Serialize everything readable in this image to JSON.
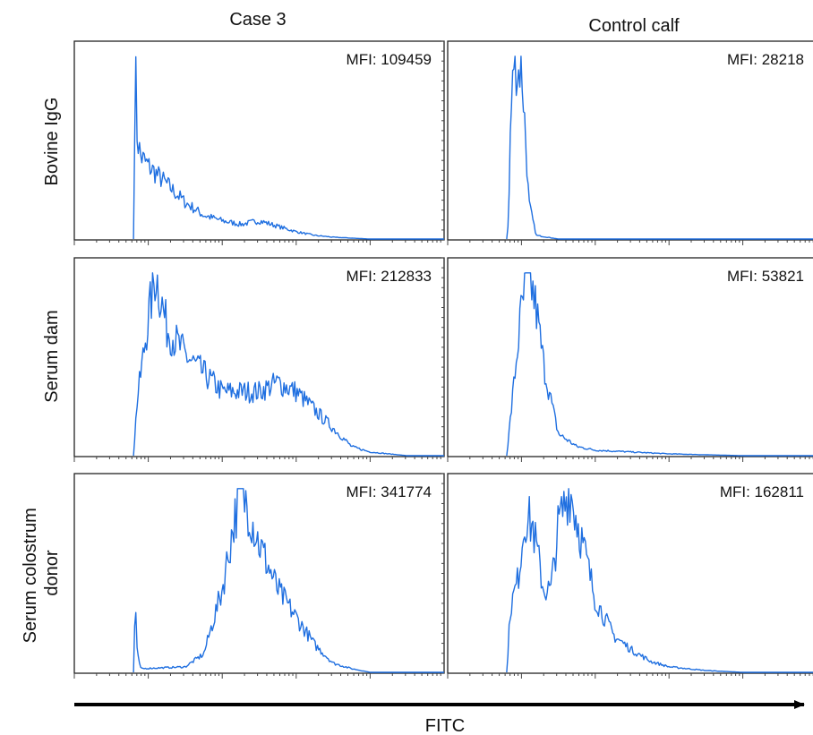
{
  "chart_data": {
    "type": "line",
    "subtype": "flow-cytometry-histogram-grid",
    "columns": [
      "Case 3",
      "Control calf"
    ],
    "rows": [
      {
        "label_lines": [
          "Bovine IgG"
        ]
      },
      {
        "label_lines": [
          "Serum dam"
        ]
      },
      {
        "label_lines": [
          "Serum colostrum",
          "donor"
        ]
      }
    ],
    "xlabel": "FITC",
    "x_scale": "log",
    "x_tick_labels": "none",
    "grid": false,
    "panels": [
      {
        "row": 0,
        "col": 0,
        "mfi": "MFI: 109459",
        "series": "bovine-igg-case3",
        "x": [
          0.16,
          0.165,
          0.17,
          0.18,
          0.2,
          0.25,
          0.3,
          0.35,
          0.4,
          0.45,
          0.5,
          0.55,
          0.6,
          0.65,
          0.7,
          0.75,
          0.8,
          0.9,
          1.0
        ],
        "y": [
          0,
          1.0,
          0.55,
          0.45,
          0.4,
          0.3,
          0.2,
          0.13,
          0.1,
          0.08,
          0.1,
          0.07,
          0.04,
          0.02,
          0.01,
          0.005,
          0,
          0,
          0
        ]
      },
      {
        "row": 0,
        "col": 1,
        "mfi": "MFI: 28218",
        "series": "bovine-igg-control",
        "x": [
          0.16,
          0.165,
          0.17,
          0.18,
          0.19,
          0.2,
          0.21,
          0.22,
          0.24,
          0.3,
          0.5,
          1.0
        ],
        "y": [
          0,
          0.1,
          0.6,
          1.0,
          0.9,
          0.95,
          0.6,
          0.2,
          0.02,
          0,
          0,
          0
        ]
      },
      {
        "row": 1,
        "col": 0,
        "mfi": "MFI: 212833",
        "series": "serum-dam-case3",
        "x": [
          0.16,
          0.17,
          0.2,
          0.22,
          0.25,
          0.3,
          0.35,
          0.4,
          0.45,
          0.5,
          0.55,
          0.6,
          0.65,
          0.7,
          0.75,
          0.8,
          0.9,
          1.0
        ],
        "y": [
          0,
          0.3,
          0.75,
          1.0,
          0.7,
          0.55,
          0.45,
          0.35,
          0.35,
          0.35,
          0.4,
          0.35,
          0.25,
          0.15,
          0.05,
          0.02,
          0,
          0
        ]
      },
      {
        "row": 1,
        "col": 1,
        "mfi": "MFI: 53821",
        "series": "serum-dam-control",
        "x": [
          0.16,
          0.18,
          0.2,
          0.22,
          0.24,
          0.26,
          0.28,
          0.3,
          0.35,
          0.4,
          0.5,
          0.6,
          0.7,
          0.8,
          1.0
        ],
        "y": [
          0,
          0.4,
          0.8,
          1.0,
          0.8,
          0.5,
          0.3,
          0.12,
          0.05,
          0.03,
          0.02,
          0.01,
          0.005,
          0,
          0
        ]
      },
      {
        "row": 2,
        "col": 0,
        "mfi": "MFI: 341774",
        "series": "serum-colostrum-donor-case3",
        "x": [
          0.16,
          0.165,
          0.17,
          0.18,
          0.3,
          0.35,
          0.4,
          0.43,
          0.45,
          0.47,
          0.5,
          0.55,
          0.6,
          0.65,
          0.7,
          0.75,
          0.8,
          0.9,
          1.0
        ],
        "y": [
          0,
          0.4,
          0.1,
          0.02,
          0.03,
          0.1,
          0.45,
          0.8,
          1.0,
          0.9,
          0.7,
          0.45,
          0.3,
          0.15,
          0.05,
          0.02,
          0,
          0,
          0
        ]
      },
      {
        "row": 2,
        "col": 1,
        "mfi": "MFI: 162811",
        "series": "serum-colostrum-donor-control",
        "x": [
          0.16,
          0.17,
          0.19,
          0.21,
          0.23,
          0.26,
          0.28,
          0.3,
          0.33,
          0.36,
          0.4,
          0.45,
          0.5,
          0.55,
          0.6,
          0.7,
          0.8,
          0.9,
          1.0
        ],
        "y": [
          0,
          0.35,
          0.5,
          0.85,
          0.8,
          0.45,
          0.45,
          0.8,
          1.0,
          0.75,
          0.4,
          0.2,
          0.12,
          0.06,
          0.03,
          0.01,
          0,
          0,
          0
        ]
      }
    ]
  }
}
